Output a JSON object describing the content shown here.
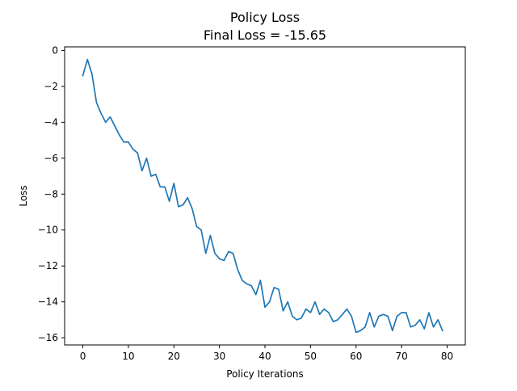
{
  "chart_data": {
    "type": "line",
    "title": "Policy Loss",
    "subtitle": "Final Loss = -15.65",
    "xlabel": "Policy Iterations",
    "ylabel": "Loss",
    "xlim": [
      -4,
      84
    ],
    "ylim": [
      -16.4,
      0.2
    ],
    "xticks": [
      0,
      10,
      20,
      30,
      40,
      50,
      60,
      70,
      80
    ],
    "yticks": [
      0,
      -2,
      -4,
      -6,
      -8,
      -10,
      -12,
      -14,
      -16
    ],
    "grid": false,
    "legend": "none",
    "series": [
      {
        "color": "#1f77b4",
        "x": [
          0,
          1,
          2,
          3,
          4,
          5,
          6,
          7,
          8,
          9,
          10,
          11,
          12,
          13,
          14,
          15,
          16,
          17,
          18,
          19,
          20,
          21,
          22,
          23,
          24,
          25,
          26,
          27,
          28,
          29,
          30,
          31,
          32,
          33,
          34,
          35,
          36,
          37,
          38,
          39,
          40,
          41,
          42,
          43,
          44,
          45,
          46,
          47,
          48,
          49,
          50,
          51,
          52,
          53,
          54,
          55,
          56,
          57,
          58,
          59,
          60,
          61,
          62,
          63,
          64,
          65,
          66,
          67,
          68,
          69,
          70,
          71,
          72,
          73,
          74,
          75,
          76,
          77,
          78,
          79
        ],
        "y": [
          -1.4,
          -0.5,
          -1.3,
          -2.9,
          -3.5,
          -4.0,
          -3.7,
          -4.2,
          -4.7,
          -5.1,
          -5.1,
          -5.5,
          -5.7,
          -6.7,
          -6.0,
          -7.0,
          -6.9,
          -7.6,
          -7.6,
          -8.4,
          -7.4,
          -8.7,
          -8.6,
          -8.2,
          -8.8,
          -9.8,
          -10.0,
          -11.3,
          -10.3,
          -11.3,
          -11.6,
          -11.7,
          -11.2,
          -11.3,
          -12.2,
          -12.8,
          -13.0,
          -13.1,
          -13.6,
          -12.8,
          -14.3,
          -14.0,
          -13.2,
          -13.3,
          -14.5,
          -14.0,
          -14.8,
          -15.0,
          -14.9,
          -14.4,
          -14.6,
          -14.0,
          -14.7,
          -14.4,
          -14.6,
          -15.1,
          -15.0,
          -14.7,
          -14.4,
          -14.8,
          -15.7,
          -15.6,
          -15.4,
          -14.6,
          -15.4,
          -14.8,
          -14.7,
          -14.8,
          -15.6,
          -14.8,
          -14.6,
          -14.6,
          -15.4,
          -15.3,
          -15.0,
          -15.5,
          -14.6,
          -15.4,
          -15.0,
          -15.6
        ]
      }
    ]
  }
}
